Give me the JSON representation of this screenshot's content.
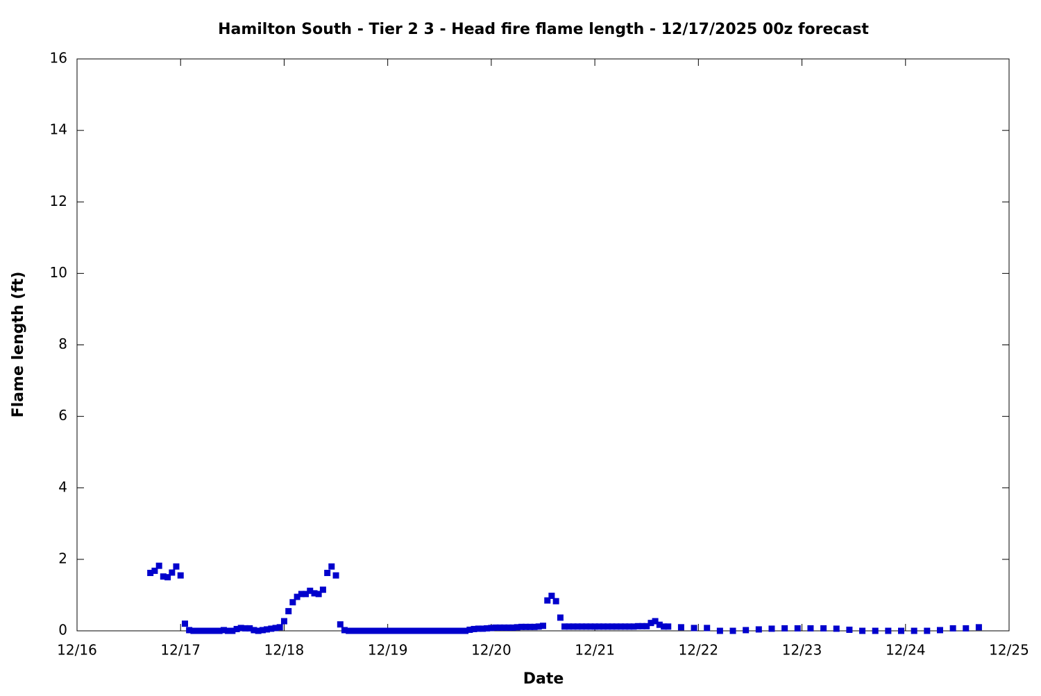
{
  "chart_data": {
    "type": "scatter",
    "title": "Hamilton South - Tier 2 3 - Head fire flame length - 12/17/2025 00z forecast",
    "x_label": "Date",
    "y_label": "Flame length (ft)",
    "color": "#0000cc",
    "xlim": [
      16,
      25
    ],
    "xticks": [
      {
        "value": 16,
        "label": "12/16"
      },
      {
        "value": 17,
        "label": "12/17"
      },
      {
        "value": 18,
        "label": "12/18"
      },
      {
        "value": 19,
        "label": "12/19"
      },
      {
        "value": 20,
        "label": "12/20"
      },
      {
        "value": 21,
        "label": "12/21"
      },
      {
        "value": 22,
        "label": "12/22"
      },
      {
        "value": 23,
        "label": "12/23"
      },
      {
        "value": 24,
        "label": "12/24"
      },
      {
        "value": 25,
        "label": "12/25"
      }
    ],
    "ylim": [
      0,
      16
    ],
    "yticks": [
      0,
      2,
      4,
      6,
      8,
      10,
      12,
      14,
      16
    ],
    "x": [
      16.708,
      16.75,
      16.792,
      16.833,
      16.875,
      16.917,
      16.958,
      17,
      17.042,
      17.083,
      17.125,
      17.167,
      17.208,
      17.25,
      17.292,
      17.333,
      17.375,
      17.417,
      17.458,
      17.5,
      17.542,
      17.583,
      17.625,
      17.667,
      17.708,
      17.75,
      17.792,
      17.833,
      17.875,
      17.917,
      17.958,
      18,
      18.042,
      18.083,
      18.125,
      18.167,
      18.208,
      18.25,
      18.292,
      18.333,
      18.375,
      18.417,
      18.458,
      18.5,
      18.542,
      18.583,
      18.625,
      18.667,
      18.708,
      18.75,
      18.792,
      18.833,
      18.875,
      18.917,
      18.958,
      19,
      19.042,
      19.083,
      19.125,
      19.167,
      19.208,
      19.25,
      19.292,
      19.333,
      19.375,
      19.417,
      19.458,
      19.5,
      19.542,
      19.583,
      19.625,
      19.667,
      19.708,
      19.75,
      19.792,
      19.833,
      19.875,
      19.917,
      19.958,
      20,
      20.042,
      20.083,
      20.125,
      20.167,
      20.208,
      20.25,
      20.292,
      20.333,
      20.375,
      20.417,
      20.458,
      20.5,
      20.542,
      20.583,
      20.625,
      20.667,
      20.708,
      20.75,
      20.792,
      20.833,
      20.875,
      20.917,
      20.958,
      21,
      21.042,
      21.083,
      21.125,
      21.167,
      21.208,
      21.25,
      21.292,
      21.333,
      21.375,
      21.417,
      21.458,
      21.5,
      21.542,
      21.583,
      21.625,
      21.667,
      21.708,
      21.833,
      21.958,
      22.083,
      22.208,
      22.333,
      22.458,
      22.583,
      22.708,
      22.833,
      22.958,
      23.083,
      23.208,
      23.333,
      23.458,
      23.583,
      23.708,
      23.833,
      23.958,
      24.083,
      24.208,
      24.333,
      24.458,
      24.583,
      24.708
    ],
    "values": [
      1.62,
      1.68,
      1.82,
      1.52,
      1.5,
      1.63,
      1.8,
      1.55,
      0.2,
      0.02,
      0,
      0,
      0,
      0,
      0,
      0,
      0,
      0.02,
      0,
      0,
      0.05,
      0.08,
      0.07,
      0.07,
      0.02,
      0,
      0.02,
      0.04,
      0.06,
      0.08,
      0.1,
      0.27,
      0.55,
      0.8,
      0.95,
      1.03,
      1.03,
      1.12,
      1.05,
      1.03,
      1.15,
      1.62,
      1.8,
      1.55,
      0.18,
      0.02,
      0,
      0,
      0,
      0,
      0,
      0,
      0,
      0,
      0,
      0,
      0,
      0,
      0,
      0,
      0,
      0,
      0,
      0,
      0,
      0,
      0,
      0,
      0,
      0,
      0,
      0,
      0,
      0,
      0.03,
      0.05,
      0.06,
      0.06,
      0.07,
      0.08,
      0.09,
      0.09,
      0.09,
      0.09,
      0.09,
      0.1,
      0.11,
      0.11,
      0.11,
      0.11,
      0.12,
      0.14,
      0.85,
      0.98,
      0.83,
      0.37,
      0.12,
      0.12,
      0.12,
      0.12,
      0.12,
      0.12,
      0.12,
      0.12,
      0.12,
      0.12,
      0.12,
      0.12,
      0.12,
      0.12,
      0.12,
      0.12,
      0.12,
      0.13,
      0.13,
      0.13,
      0.22,
      0.27,
      0.17,
      0.12,
      0.12,
      0.1,
      0.08,
      0.08,
      0,
      0,
      0.02,
      0.04,
      0.06,
      0.07,
      0.07,
      0.07,
      0.07,
      0.06,
      0.03,
      0,
      0,
      0,
      0,
      0,
      0,
      0.02,
      0.07,
      0.07,
      0.1
    ]
  }
}
